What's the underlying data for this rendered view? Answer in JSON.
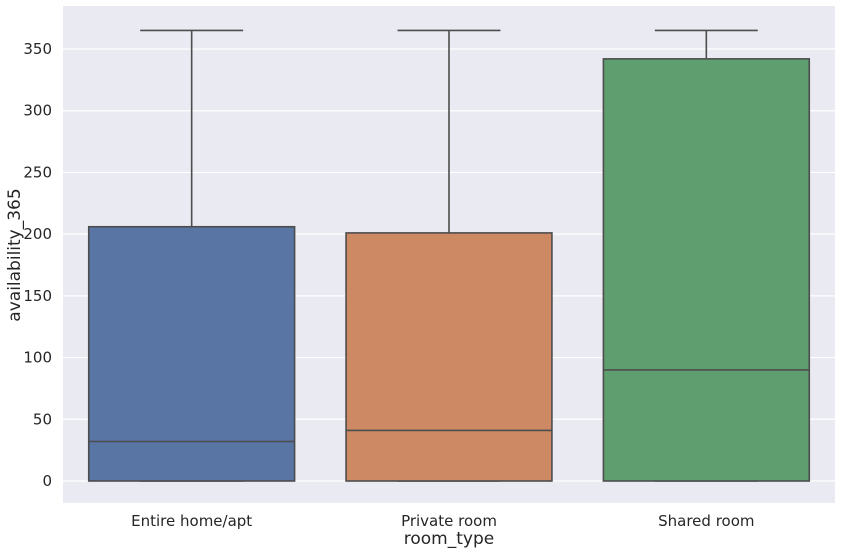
{
  "chart_data": {
    "type": "box",
    "title": "",
    "xlabel": "room_type",
    "ylabel": "availability_365",
    "ylim": [
      -18,
      378
    ],
    "yticks": [
      0,
      50,
      100,
      150,
      200,
      250,
      300,
      350
    ],
    "grid": true,
    "categories": [
      "Entire home/apt",
      "Private room",
      "Shared room"
    ],
    "boxes": [
      {
        "category": "Entire home/apt",
        "whisker_low": 0,
        "q1": 0,
        "median": 32,
        "q3": 206,
        "whisker_high": 365,
        "color": "#5875a4"
      },
      {
        "category": "Private room",
        "whisker_low": 0,
        "q1": 0,
        "median": 41,
        "q3": 201,
        "whisker_high": 365,
        "color": "#cc8963"
      },
      {
        "category": "Shared room",
        "whisker_low": 0,
        "q1": 0,
        "median": 90,
        "q3": 342,
        "whisker_high": 365,
        "color": "#5f9e6e"
      }
    ],
    "colors": {
      "background": "#eaeaf2",
      "grid": "#ffffff",
      "line": "#4d4d4d"
    }
  }
}
